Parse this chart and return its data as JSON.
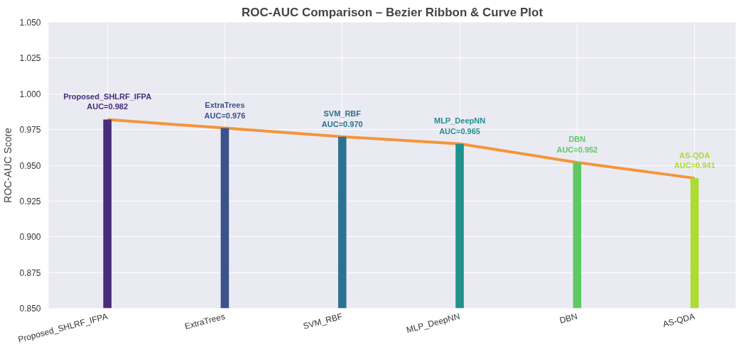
{
  "chart_data": {
    "type": "bar",
    "title": "ROC-AUC Comparison – Bezier Ribbon & Curve Plot",
    "ylabel": "ROC-AUC Score",
    "categories": [
      "Proposed_SHLRF_IFPA",
      "ExtraTrees",
      "SVM_RBF",
      "MLP_DeepNN",
      "DBN",
      "AS-QDA"
    ],
    "series": [
      {
        "values": [
          0.982,
          0.976,
          0.97,
          0.965,
          0.952,
          0.941
        ],
        "colors": [
          "#472d7b",
          "#3b528b",
          "#2c728e",
          "#21918c",
          "#5ec962",
          "#addc30"
        ],
        "value_labels": [
          "Proposed_SHLRF_IFPA\nAUC=0.982",
          "ExtraTrees\nAUC=0.976",
          "SVM_RBF\nAUC=0.970",
          "MLP_DeepNN\nAUC=0.965",
          "DBN\nAUC=0.952",
          "AS-QDA\nAUC=0.941"
        ]
      },
      {
        "type": "line",
        "color": "#f5953a",
        "values": [
          0.982,
          0.976,
          0.97,
          0.965,
          0.952,
          0.941
        ]
      }
    ],
    "ylim": [
      0.85,
      1.05
    ],
    "yticks": [
      {
        "value": 0.85,
        "label": "0.850"
      },
      {
        "value": 0.875,
        "label": "0.875"
      },
      {
        "value": 0.9,
        "label": "0.900"
      },
      {
        "value": 0.925,
        "label": "0.925"
      },
      {
        "value": 0.95,
        "label": "0.950"
      },
      {
        "value": 0.975,
        "label": "0.975"
      },
      {
        "value": 1.0,
        "label": "1.000"
      },
      {
        "value": 1.025,
        "label": "1.025"
      },
      {
        "value": 1.05,
        "label": "1.050"
      }
    ],
    "grid": true
  }
}
